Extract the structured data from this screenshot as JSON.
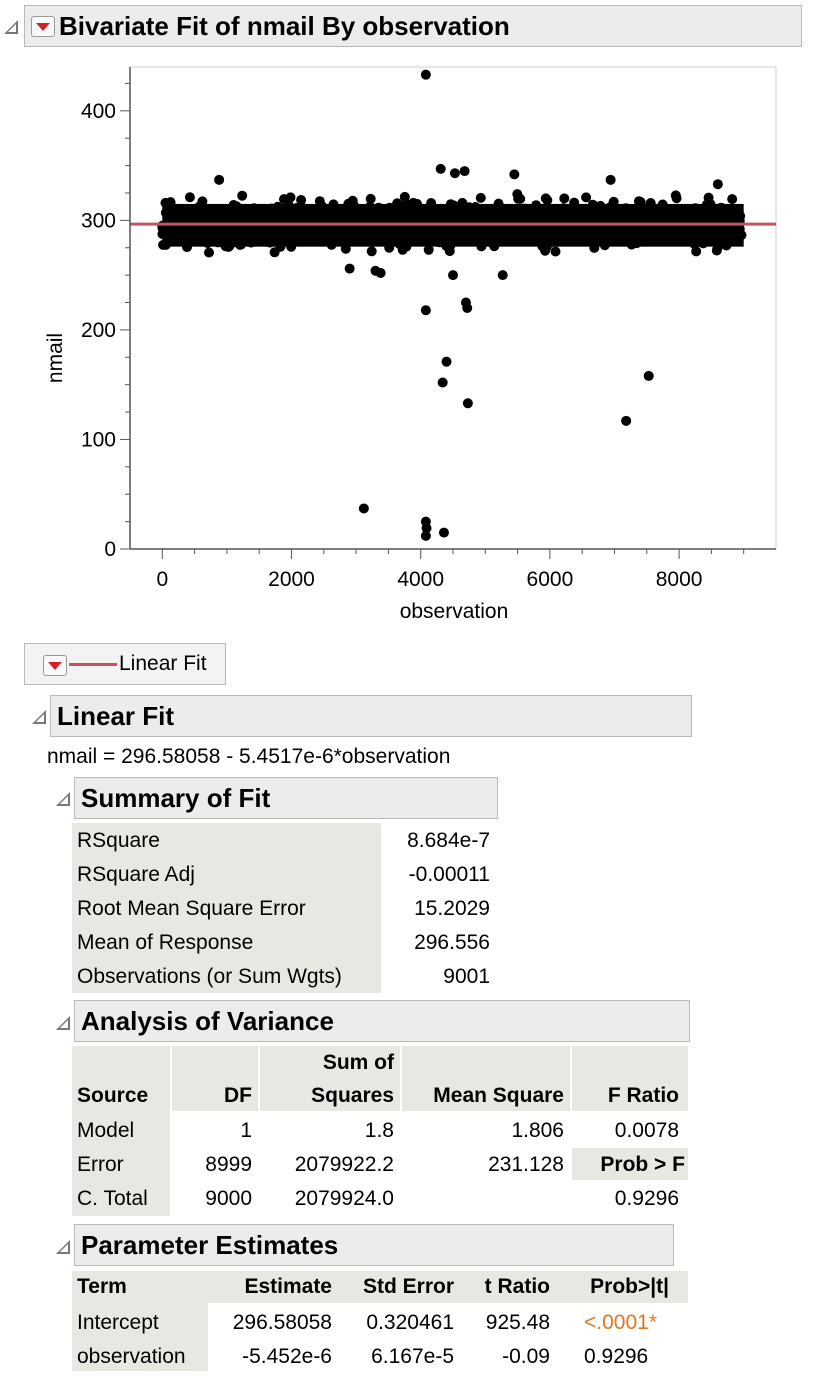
{
  "bivariate": {
    "title": "Bivariate Fit of nmail By observation"
  },
  "chart_data": {
    "type": "scatter",
    "xlabel": "observation",
    "ylabel": "nmail",
    "xlim": [
      -500,
      9500
    ],
    "ylim": [
      0,
      440
    ],
    "xticks": [
      "0",
      "2000",
      "4000",
      "6000",
      "8000"
    ],
    "yticks": [
      "0",
      "100",
      "200",
      "300",
      "400"
    ],
    "dense_band": {
      "x_range": [
        0,
        9000
      ],
      "y_range": [
        262,
        338
      ],
      "center": 296.6
    },
    "fit_line": {
      "intercept": 296.58058,
      "slope": -5.4517e-06,
      "color": "#c9505e"
    },
    "outliers": [
      {
        "x": 4080,
        "y": 433
      },
      {
        "x": 4310,
        "y": 347
      },
      {
        "x": 4680,
        "y": 345
      },
      {
        "x": 4530,
        "y": 343
      },
      {
        "x": 5450,
        "y": 342
      },
      {
        "x": 4080,
        "y": 218
      },
      {
        "x": 4700,
        "y": 225
      },
      {
        "x": 4720,
        "y": 220
      },
      {
        "x": 4400,
        "y": 171
      },
      {
        "x": 4340,
        "y": 152
      },
      {
        "x": 4730,
        "y": 133
      },
      {
        "x": 7530,
        "y": 158
      },
      {
        "x": 7180,
        "y": 117
      },
      {
        "x": 3120,
        "y": 37
      },
      {
        "x": 4080,
        "y": 25
      },
      {
        "x": 4090,
        "y": 19
      },
      {
        "x": 4080,
        "y": 12
      },
      {
        "x": 4360,
        "y": 15
      },
      {
        "x": 3300,
        "y": 254
      },
      {
        "x": 3380,
        "y": 252
      },
      {
        "x": 4500,
        "y": 250
      },
      {
        "x": 5270,
        "y": 250
      },
      {
        "x": 2900,
        "y": 256
      },
      {
        "x": 880,
        "y": 337
      },
      {
        "x": 6940,
        "y": 337
      },
      {
        "x": 8600,
        "y": 333
      }
    ]
  },
  "legend": {
    "label": "Linear Fit",
    "line_color": "#c9505e"
  },
  "linear_fit": {
    "title": "Linear Fit",
    "equation": "nmail = 296.58058 - 5.4517e-6*observation"
  },
  "summary_of_fit": {
    "title": "Summary of Fit",
    "rows": [
      {
        "label": "RSquare",
        "value": "8.684e-7"
      },
      {
        "label": "RSquare Adj",
        "value": "-0.00011"
      },
      {
        "label": "Root Mean Square Error",
        "value": "15.2029"
      },
      {
        "label": "Mean of Response",
        "value": "296.556"
      },
      {
        "label": "Observations (or Sum Wgts)",
        "value": "9001"
      }
    ]
  },
  "anova": {
    "title": "Analysis of Variance",
    "headers": {
      "source": "Source",
      "df": "DF",
      "ss_top": "Sum of",
      "ss_bottom": "Squares",
      "ms": "Mean Square",
      "f": "F Ratio"
    },
    "rows": [
      {
        "source": "Model",
        "df": "1",
        "ss": "1.8",
        "ms": "1.806",
        "f": "0.0078"
      },
      {
        "source": "Error",
        "df": "8999",
        "ss": "2079922.2",
        "ms": "231.128",
        "f": "Prob > F"
      },
      {
        "source": "C. Total",
        "df": "9000",
        "ss": "2079924.0",
        "ms": "",
        "f": "0.9296"
      }
    ]
  },
  "parameter_estimates": {
    "title": "Parameter Estimates",
    "headers": {
      "term": "Term",
      "estimate": "Estimate",
      "std_error": "Std Error",
      "t_ratio": "t Ratio",
      "prob": "Prob>|t|"
    },
    "rows": [
      {
        "term": "Intercept",
        "estimate": "296.58058",
        "std_error": "0.320461",
        "t_ratio": "925.48",
        "prob": "<.0001*"
      },
      {
        "term": "observation",
        "estimate": "-5.452e-6",
        "std_error": "6.167e-5",
        "t_ratio": "-0.09",
        "prob": "0.9296"
      }
    ],
    "significant_color": "#e07820"
  }
}
